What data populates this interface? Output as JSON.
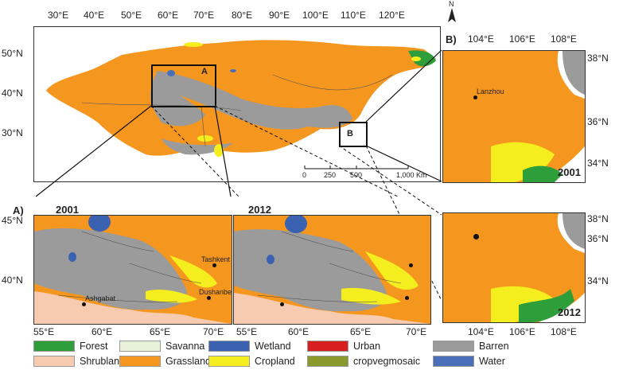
{
  "main_map": {
    "top_ticks": [
      "30°E",
      "40°E",
      "50°E",
      "60°E",
      "70°E",
      "80°E",
      "90°E",
      "100°E",
      "110°E",
      "120°E"
    ],
    "left_ticks": [
      "50°N",
      "40°N",
      "30°N"
    ],
    "box_a": "A",
    "box_b": "B",
    "scale_labels": [
      "0",
      "250",
      "500",
      "1,000 Km"
    ]
  },
  "panel_a": {
    "label": "A)",
    "year_left": "2001",
    "year_right": "2012",
    "left_ticks": [
      "45°N",
      "40°N"
    ],
    "bottom_ticks_left": [
      "55°E",
      "60°E",
      "65°E",
      "70°E"
    ],
    "bottom_ticks_right": [
      "55°E",
      "60°E",
      "65°E",
      "70°E"
    ],
    "places": [
      "Tashkent",
      "Dushanbe",
      "Ashgabat"
    ]
  },
  "panel_b": {
    "label": "B)",
    "top_ticks": [
      "104°E",
      "106°E",
      "108°E"
    ],
    "bottom_ticks": [
      "104°E",
      "106°E",
      "108°E"
    ],
    "right_ticks_top": [
      "38°N",
      "36°N",
      "34°N"
    ],
    "right_ticks_bottom": [
      "38°N",
      "36°N",
      "34°N"
    ],
    "year_top": "2001",
    "year_bottom": "2012",
    "place": "Lanzhou"
  },
  "north": "N",
  "legend": [
    {
      "label": "Forest",
      "color": "#2e9e3a"
    },
    {
      "label": "Savanna",
      "color": "#e8f2d8"
    },
    {
      "label": "Wetland",
      "color": "#3a62b0"
    },
    {
      "label": "Urban",
      "color": "#d81e1e"
    },
    {
      "label": "Barren",
      "color": "#9b9b9b"
    },
    {
      "label": "Shrubland",
      "color": "#f6cbb0"
    },
    {
      "label": "Grassland",
      "color": "#f5961e"
    },
    {
      "label": "Cropland",
      "color": "#f5ee1e"
    },
    {
      "label": "cropvegmosaic",
      "color": "#8a9a2a"
    },
    {
      "label": "Water",
      "color": "#4a6fb8"
    }
  ]
}
